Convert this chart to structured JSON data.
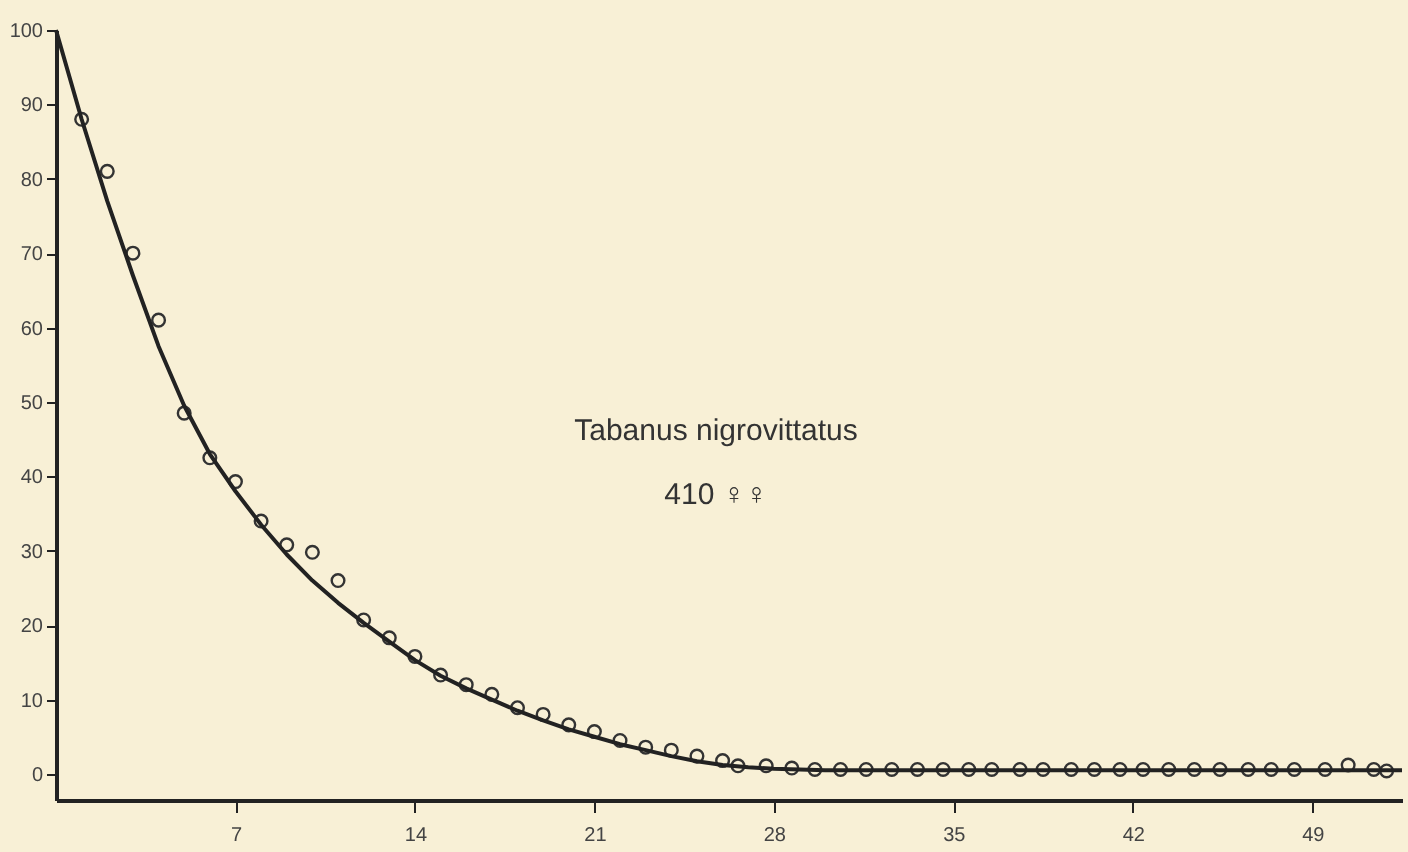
{
  "chart_data": {
    "type": "scatter",
    "annotations": [
      "Tabanus nigrovittatus",
      "410 ♀♀"
    ],
    "series": [
      {
        "color": "#333333",
        "marker": "circle",
        "x": [
          1,
          2,
          3,
          4,
          5,
          6,
          7,
          8,
          9,
          10,
          11,
          12,
          13,
          14,
          15,
          16,
          17,
          18,
          19,
          20,
          21,
          22,
          23,
          24,
          25,
          26,
          26.6,
          27.7,
          28.7,
          29.6,
          30.6,
          31.6,
          32.6,
          33.6,
          34.6,
          35.6,
          36.5,
          37.6,
          38.5,
          39.6,
          40.5,
          41.5,
          42.4,
          43.4,
          44.4,
          45.4,
          46.5,
          47.4,
          48.3,
          49.5,
          50.4,
          51.4,
          51.9
        ],
        "values": [
          88,
          81,
          70,
          61,
          48.5,
          42.5,
          39.3,
          34,
          30.8,
          29.8,
          26,
          20.7,
          18.3,
          15.8,
          13.3,
          12,
          10.7,
          8.9,
          8,
          6.6,
          5.7,
          4.5,
          3.6,
          3.2,
          2.4,
          1.8,
          1.1,
          1.1,
          0.8,
          0.6,
          0.6,
          0.6,
          0.6,
          0.6,
          0.6,
          0.6,
          0.6,
          0.6,
          0.6,
          0.6,
          0.6,
          0.6,
          0.6,
          0.6,
          0.6,
          0.6,
          0.6,
          0.6,
          0.6,
          0.6,
          1.2,
          0.6,
          0.4
        ]
      },
      {
        "type": "line",
        "color": "#222222",
        "line_style": "solid",
        "x": [
          0,
          1,
          2,
          3,
          4,
          5,
          6,
          7,
          8,
          9,
          10,
          11,
          12,
          13,
          14,
          15,
          16,
          17,
          18,
          19,
          20,
          21,
          22,
          23,
          24,
          25,
          26,
          27,
          28,
          30,
          52.5
        ],
        "values": [
          100,
          88,
          77,
          67,
          57.5,
          49.5,
          43,
          38,
          33.5,
          29.5,
          26,
          23,
          20.3,
          17.8,
          15.3,
          13.2,
          11.5,
          10,
          8.5,
          7.2,
          6,
          5,
          4,
          3.2,
          2.4,
          1.7,
          1.2,
          0.9,
          0.7,
          0.5,
          0.5
        ]
      }
    ],
    "xlim": [
      0,
      52.5
    ],
    "xticks": [
      7,
      14,
      21,
      28,
      35,
      42,
      49
    ],
    "ylim": [
      -3.5,
      100
    ],
    "yticks": [
      0,
      10,
      20,
      30,
      40,
      50,
      60,
      70,
      80,
      90,
      100
    ],
    "grid": false
  }
}
